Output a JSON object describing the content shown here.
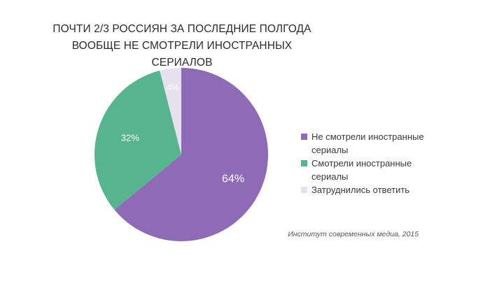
{
  "chart_data": {
    "type": "pie",
    "title_lines": [
      "ПОЧТИ 2/3 РОССИЯН ЗА ПОСЛЕДНИЕ ПОЛГОДА",
      "ВООБЩЕ НЕ СМОТРЕЛИ ИНОСТРАННЫХ СЕРИАЛОВ"
    ],
    "slices": [
      {
        "label": "Не смотрели иностранные сериалы",
        "value": 64,
        "display": "64%",
        "color": "#8f6ab7",
        "text_color": "#ffffff"
      },
      {
        "label": "Смотрели иностранные сериалы",
        "value": 32,
        "display": "32%",
        "color": "#56b48e",
        "text_color": "#ffffff"
      },
      {
        "label": "Затруднились ответить",
        "value": 4,
        "display": "4%",
        "color": "#e6e1ee",
        "text_color": "#ffffff"
      }
    ],
    "legend_position": "right",
    "source": "Институт современных медиа, 2015"
  }
}
